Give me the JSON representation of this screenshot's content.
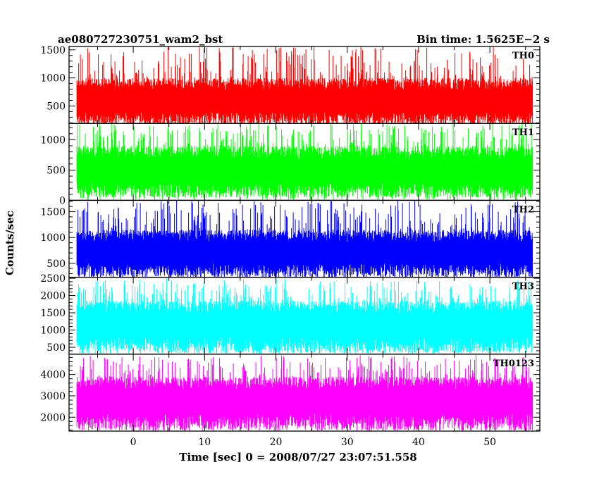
{
  "header": {
    "left_title": "ae080727230751_wam2_bst",
    "right_title": "Bin time: 1.5625E−2 s"
  },
  "chart_data": {
    "type": "line",
    "title": "ae080727230751_wam2_bst",
    "subtitle": "Bin time: 1.5625E−2 s",
    "xlabel": "Time [sec] 0 = 2008/07/27 23:07:51.558",
    "ylabel": "Counts/sec",
    "xlim": [
      -9,
      57
    ],
    "x_ticks": [
      0,
      10,
      20,
      30,
      40,
      50
    ],
    "data_x_range": [
      -7.9,
      56.0
    ],
    "bin_time_s": 0.015625,
    "grid": false,
    "legend": "none",
    "panels": [
      {
        "name": "TH0",
        "color": "#ff0000",
        "ylim": [
          190,
          1560
        ],
        "y_ticks": [
          500,
          1000,
          1500
        ],
        "typical_range": [
          160,
          1000
        ],
        "peak_range": [
          1000,
          1560
        ],
        "median": 560
      },
      {
        "name": "TH1",
        "color": "#00ff00",
        "ylim": [
          0,
          1270
        ],
        "y_ticks": [
          0,
          500,
          1000
        ],
        "typical_range": [
          40,
          900
        ],
        "peak_range": [
          900,
          1270
        ],
        "median": 450
      },
      {
        "name": "TH2",
        "color": "#0000ff",
        "ylim": [
          230,
          1720
        ],
        "y_ticks": [
          500,
          1000,
          1500
        ],
        "typical_range": [
          230,
          1150
        ],
        "peak_range": [
          1150,
          1720
        ],
        "median": 680
      },
      {
        "name": "TH3",
        "color": "#00ffff",
        "ylim": [
          300,
          2530
        ],
        "y_ticks": [
          500,
          1000,
          1500,
          2000,
          2500
        ],
        "typical_range": [
          330,
          1850
        ],
        "peak_range": [
          1850,
          2500
        ],
        "median": 1100
      },
      {
        "name": "TH0123",
        "color": "#ff00ff",
        "ylim": [
          1350,
          4950
        ],
        "y_ticks": [
          2000,
          3000,
          4000
        ],
        "typical_range": [
          1400,
          3900
        ],
        "peak_range": [
          3900,
          4900
        ],
        "median": 2700
      }
    ]
  }
}
